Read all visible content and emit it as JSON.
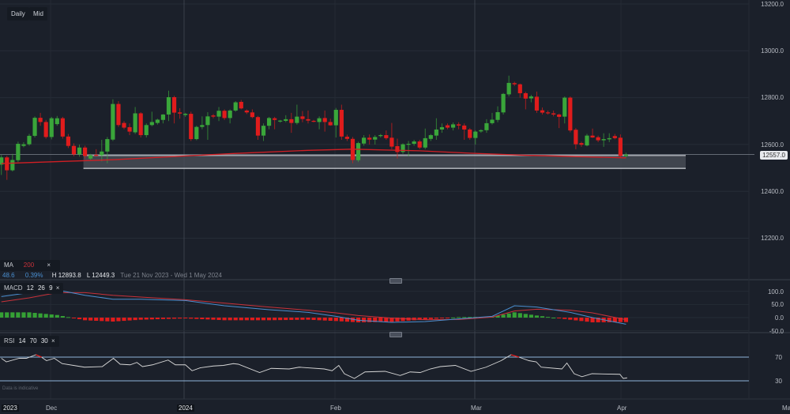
{
  "toolbar": {
    "daily_label": "Daily",
    "mid_label": "Mid"
  },
  "legend": {
    "ma_label": "MA",
    "ma_period": "200",
    "close_icon": "×",
    "change": "48.6",
    "change_pct": "0.39%",
    "high": "H 12893.8",
    "low": "L 12449.3",
    "range": "Tue 21 Nov 2023 - Wed 1 May 2024"
  },
  "macd_legend": {
    "label": "MACD",
    "fast": "12",
    "slow": "26",
    "signal": "9",
    "close_icon": "×"
  },
  "rsi_legend": {
    "label": "RSI",
    "period": "14",
    "upper": "70",
    "lower": "30",
    "close_icon": "×"
  },
  "disclaimer": "Data is indicative",
  "price_axis": [
    "13200.0",
    "13000.0",
    "12800.0",
    "12600.0",
    "12400.0",
    "12200.0"
  ],
  "current_price": "12557.0",
  "macd_axis": [
    "100.0",
    "50.0",
    "0.0",
    "-50.0"
  ],
  "rsi_axis": [
    "70",
    "30"
  ],
  "date_axis": [
    "2023",
    "Dec",
    "2024",
    "Feb",
    "Mar",
    "Apr",
    "Ma"
  ],
  "colors": {
    "background": "#1b202a",
    "up": "#3aa63a",
    "down": "#e01c1c",
    "ma": "#d11f24",
    "macd": "#4a8fd0",
    "signal": "#c8323a",
    "rsi": "#d8d8d8",
    "band": "#8fb3d9",
    "zone": "#4a4f58"
  },
  "chart_data": {
    "type": "candlestick",
    "ylim": [
      12130,
      13215
    ],
    "grid": true,
    "candles_ohlc": [
      [
        12514,
        12555,
        12470,
        12545
      ],
      [
        12545,
        12552,
        12449,
        12490
      ],
      [
        12490,
        12560,
        12485,
        12534
      ],
      [
        12533,
        12612,
        12525,
        12603
      ],
      [
        12594,
        12610,
        12588,
        12601
      ],
      [
        12601,
        12645,
        12595,
        12637
      ],
      [
        12637,
        12720,
        12630,
        12714
      ],
      [
        12714,
        12735,
        12680,
        12696
      ],
      [
        12696,
        12705,
        12625,
        12632
      ],
      [
        12632,
        12718,
        12622,
        12712
      ],
      [
        12687,
        12722,
        12680,
        12712
      ],
      [
        12712,
        12718,
        12625,
        12634
      ],
      [
        12634,
        12645,
        12585,
        12594
      ],
      [
        12594,
        12605,
        12550,
        12558
      ],
      [
        12558,
        12600,
        12548,
        12587
      ],
      [
        12587,
        12595,
        12540,
        12551
      ],
      [
        12540,
        12560,
        12535,
        12554
      ],
      [
        12556,
        12580,
        12548,
        12554
      ],
      [
        12554,
        12620,
        12528,
        12570
      ],
      [
        12570,
        12632,
        12520,
        12623
      ],
      [
        12621,
        12793,
        12615,
        12773
      ],
      [
        12773,
        12785,
        12675,
        12683
      ],
      [
        12692,
        12700,
        12665,
        12672
      ],
      [
        12674,
        12690,
        12640,
        12655
      ],
      [
        12652,
        12760,
        12645,
        12733
      ],
      [
        12733,
        12738,
        12630,
        12640
      ],
      [
        12640,
        12690,
        12630,
        12683
      ],
      [
        12683,
        12740,
        12678,
        12696
      ],
      [
        12692,
        12710,
        12685,
        12706
      ],
      [
        12705,
        12730,
        12690,
        12728
      ],
      [
        12728,
        12830,
        12700,
        12802
      ],
      [
        12802,
        12808,
        12690,
        12736
      ],
      [
        12737,
        12755,
        12710,
        12732
      ],
      [
        12726,
        12735,
        12718,
        12731
      ],
      [
        12731,
        12740,
        12615,
        12623
      ],
      [
        12623,
        12680,
        12618,
        12675
      ],
      [
        12675,
        12720,
        12665,
        12683
      ],
      [
        12683,
        12738,
        12620,
        12720
      ],
      [
        12724,
        12730,
        12712,
        12719
      ],
      [
        12719,
        12760,
        12700,
        12744
      ],
      [
        12744,
        12750,
        12705,
        12713
      ],
      [
        12713,
        12750,
        12690,
        12745
      ],
      [
        12745,
        12785,
        12740,
        12780
      ],
      [
        12782,
        12790,
        12750,
        12754
      ],
      [
        12745,
        12750,
        12730,
        12737
      ],
      [
        12737,
        12750,
        12712,
        12717
      ],
      [
        12717,
        12722,
        12620,
        12638
      ],
      [
        12638,
        12690,
        12615,
        12680
      ],
      [
        12680,
        12718,
        12665,
        12713
      ],
      [
        12712,
        12718,
        12665,
        12705
      ],
      [
        12699,
        12705,
        12693,
        12702
      ],
      [
        12701,
        12725,
        12695,
        12708
      ],
      [
        12708,
        12735,
        12650,
        12692
      ],
      [
        12692,
        12770,
        12685,
        12719
      ],
      [
        12720,
        12743,
        12695,
        12709
      ],
      [
        12708,
        12745,
        12690,
        12702
      ],
      [
        12701,
        12705,
        12695,
        12699
      ],
      [
        12696,
        12720,
        12665,
        12712
      ],
      [
        12713,
        12745,
        12655,
        12696
      ],
      [
        12696,
        12710,
        12680,
        12682
      ],
      [
        12682,
        12756,
        12630,
        12748
      ],
      [
        12748,
        12770,
        12620,
        12634
      ],
      [
        12633,
        12642,
        12615,
        12624
      ],
      [
        12624,
        12632,
        12520,
        12534
      ],
      [
        12533,
        12612,
        12525,
        12606
      ],
      [
        12604,
        12640,
        12595,
        12629
      ],
      [
        12629,
        12643,
        12600,
        12621
      ],
      [
        12621,
        12640,
        12600,
        12632
      ],
      [
        12636,
        12645,
        12630,
        12640
      ],
      [
        12640,
        12660,
        12620,
        12627
      ],
      [
        12629,
        12692,
        12580,
        12591
      ],
      [
        12593,
        12625,
        12540,
        12568
      ],
      [
        12568,
        12605,
        12560,
        12601
      ],
      [
        12600,
        12615,
        12550,
        12603
      ],
      [
        12603,
        12620,
        12595,
        12613
      ],
      [
        12613,
        12620,
        12580,
        12587
      ],
      [
        12587,
        12668,
        12580,
        12627
      ],
      [
        12624,
        12645,
        12615,
        12640
      ],
      [
        12638,
        12712,
        12620,
        12664
      ],
      [
        12664,
        12690,
        12650,
        12674
      ],
      [
        12682,
        12690,
        12665,
        12672
      ],
      [
        12672,
        12694,
        12660,
        12686
      ],
      [
        12686,
        12695,
        12665,
        12681
      ],
      [
        12681,
        12690,
        12620,
        12664
      ],
      [
        12664,
        12670,
        12620,
        12628
      ],
      [
        12628,
        12660,
        12600,
        12655
      ],
      [
        12656,
        12665,
        12650,
        12661
      ],
      [
        12661,
        12708,
        12650,
        12691
      ],
      [
        12691,
        12735,
        12685,
        12706
      ],
      [
        12705,
        12763,
        12695,
        12738
      ],
      [
        12737,
        12820,
        12728,
        12816
      ],
      [
        12814,
        12894,
        12805,
        12863
      ],
      [
        12862,
        12868,
        12850,
        12857
      ],
      [
        12857,
        12860,
        12800,
        12819
      ],
      [
        12819,
        12825,
        12750,
        12796
      ],
      [
        12797,
        12812,
        12780,
        12805
      ],
      [
        12804,
        12826,
        12735,
        12745
      ],
      [
        12746,
        12758,
        12728,
        12736
      ],
      [
        12737,
        12745,
        12728,
        12733
      ],
      [
        12733,
        12745,
        12720,
        12728
      ],
      [
        12728,
        12732,
        12670,
        12718
      ],
      [
        12719,
        12805,
        12690,
        12800
      ],
      [
        12800,
        12805,
        12652,
        12660
      ],
      [
        12663,
        12670,
        12580,
        12601
      ],
      [
        12606,
        12612,
        12590,
        12599
      ],
      [
        12596,
        12645,
        12592,
        12638
      ],
      [
        12638,
        12668,
        12628,
        12630
      ],
      [
        12631,
        12638,
        12610,
        12618
      ],
      [
        12618,
        12648,
        12590,
        12623
      ],
      [
        12622,
        12648,
        12610,
        12627
      ],
      [
        12636,
        12645,
        12622,
        12627
      ],
      [
        12629,
        12643,
        12545,
        12551
      ],
      [
        12551,
        12565,
        12545,
        12557
      ]
    ],
    "ma200": [
      [
        0,
        12519
      ],
      [
        20,
        12535
      ],
      [
        42,
        12562
      ],
      [
        55,
        12575
      ],
      [
        63,
        12580
      ],
      [
        75,
        12573
      ],
      [
        84,
        12563
      ],
      [
        94,
        12554
      ],
      [
        112,
        12543
      ]
    ],
    "support_zone": [
      12498,
      12553
    ],
    "macd": {
      "ylim": [
        -50,
        100
      ],
      "points_bar_macd_signal": [
        [
          0,
          80,
          60
        ],
        [
          5,
          95,
          75
        ],
        [
          10,
          105,
          95
        ],
        [
          15,
          85,
          95
        ],
        [
          20,
          70,
          85
        ],
        [
          25,
          70,
          78
        ],
        [
          33,
          65,
          68
        ],
        [
          40,
          45,
          55
        ],
        [
          48,
          30,
          40
        ],
        [
          55,
          20,
          28
        ],
        [
          60,
          5,
          18
        ],
        [
          64,
          -10,
          8
        ],
        [
          70,
          -18,
          -2
        ],
        [
          76,
          -15,
          -8
        ],
        [
          82,
          -5,
          -7
        ],
        [
          88,
          5,
          2
        ],
        [
          92,
          45,
          25
        ],
        [
          96,
          40,
          32
        ],
        [
          102,
          20,
          28
        ],
        [
          106,
          0,
          18
        ],
        [
          112,
          -25,
          -8
        ]
      ]
    },
    "rsi": {
      "ylim": [
        0,
        100
      ],
      "levels": [
        70,
        30
      ],
      "points_bar_value": [
        [
          0,
          68
        ],
        [
          0.9,
          62
        ],
        [
          3.2,
          68
        ],
        [
          4.5,
          68
        ],
        [
          6.2,
          74
        ],
        [
          7.2,
          70
        ],
        [
          8.1,
          64
        ],
        [
          9.5,
          68
        ],
        [
          10.9,
          59
        ],
        [
          13.6,
          55
        ],
        [
          14.9,
          53
        ],
        [
          18.1,
          54
        ],
        [
          20.1,
          68
        ],
        [
          21.3,
          58
        ],
        [
          23.1,
          57
        ],
        [
          24.3,
          61
        ],
        [
          25.3,
          54
        ],
        [
          27.1,
          57
        ],
        [
          29.9,
          65
        ],
        [
          31.2,
          57
        ],
        [
          33,
          57
        ],
        [
          34.2,
          47
        ],
        [
          35.7,
          52
        ],
        [
          38,
          55
        ],
        [
          39.8,
          56
        ],
        [
          41.6,
          59
        ],
        [
          42.5,
          58
        ],
        [
          46.3,
          44
        ],
        [
          48.4,
          51
        ],
        [
          51.6,
          50
        ],
        [
          53.4,
          53
        ],
        [
          57.9,
          50
        ],
        [
          59.3,
          47
        ],
        [
          60.5,
          56
        ],
        [
          61.5,
          42
        ],
        [
          63.3,
          34
        ],
        [
          65.2,
          45
        ],
        [
          68.8,
          46
        ],
        [
          71.5,
          39
        ],
        [
          73.3,
          45
        ],
        [
          75.1,
          44
        ],
        [
          76.9,
          50
        ],
        [
          78.7,
          54
        ],
        [
          81.4,
          56
        ],
        [
          84.2,
          46
        ],
        [
          86.9,
          53
        ],
        [
          89.6,
          64
        ],
        [
          91.4,
          74
        ],
        [
          92.8,
          70
        ],
        [
          94.6,
          64
        ],
        [
          95.9,
          62
        ],
        [
          96.8,
          53
        ],
        [
          100.5,
          50
        ],
        [
          101.4,
          60
        ],
        [
          102.7,
          42
        ],
        [
          104.1,
          37
        ],
        [
          105.9,
          42
        ],
        [
          110.9,
          41
        ],
        [
          111.5,
          34
        ],
        [
          112.2,
          35
        ]
      ]
    }
  }
}
